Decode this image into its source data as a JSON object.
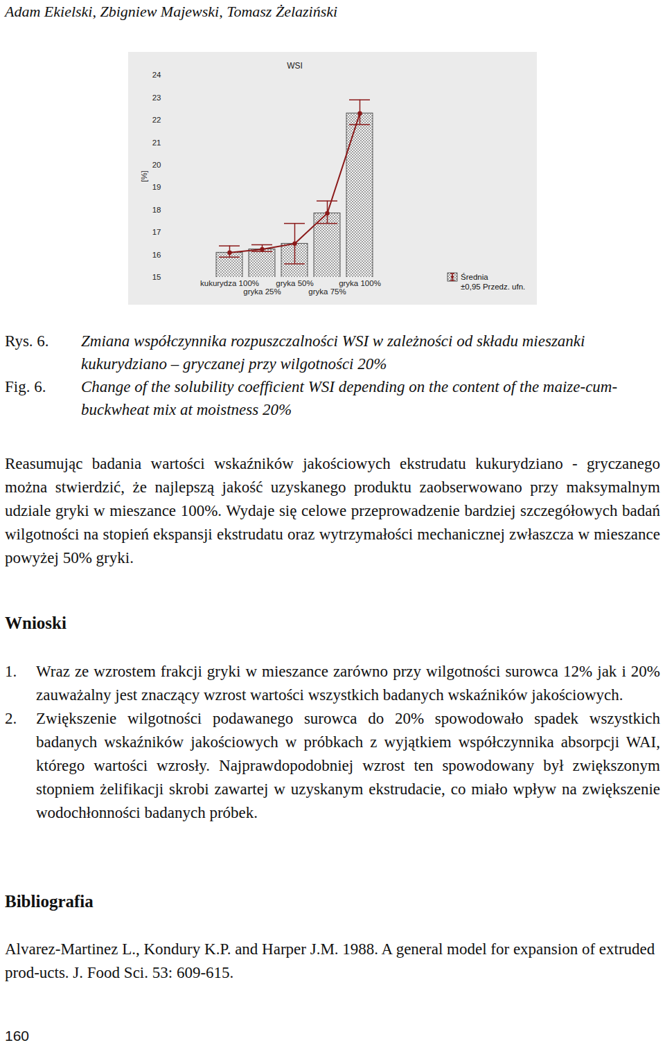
{
  "header": {
    "authors": "Adam Ekielski, Zbigniew Majewski, Tomasz Żelaziński"
  },
  "chart_data": {
    "type": "bar",
    "title": "WSI",
    "y_label": "[%]",
    "categories": [
      "kukurydza 100%",
      "gryka 25%",
      "gryka 50%",
      "gryka 75%",
      "gryka 100%"
    ],
    "color": "#8c8c8c",
    "ylim": [
      15,
      24
    ],
    "yticks": [
      15,
      16,
      17,
      18,
      19,
      20,
      21,
      22,
      23,
      24
    ],
    "grid": false,
    "legend": "right",
    "series": [
      {
        "name": "Średnia",
        "type": "line",
        "marker": "circle",
        "color": "#8b1a1a",
        "values": [
          16.1,
          16.25,
          16.5,
          17.85,
          22.3
        ],
        "error_low": [
          15.9,
          16.15,
          15.6,
          17.4,
          21.8
        ],
        "error_high": [
          16.4,
          16.45,
          17.4,
          18.4,
          22.9
        ],
        "error_name": "±0,95 Przedz. ufn."
      }
    ]
  },
  "caption": {
    "pl_label": "Rys. 6.",
    "pl_text": "Zmiana współczynnika rozpuszczalności WSI w zależności od składu mieszanki kukurydziano – gryczanej przy wilgotności 20%",
    "en_label": "Fig. 6.",
    "en_text": "Change of the solubility coefficient WSI depending on the content of the maize-cum-buckwheat mix at moistness 20%"
  },
  "paragraph": "Reasumując badania wartości wskaźników jakościowych ekstrudatu kukurydziano - gryczanego można stwierdzić, że najlepszą jakość uzyskanego produktu zaobserwowano przy maksymalnym udziale gryki w mieszance 100%. Wydaje się celowe przeprowadzenie bardziej szczegółowych badań wilgotności na stopień ekspansji ekstrudatu oraz wytrzymałości mechanicznej zwłaszcza w mieszance powyżej 50% gryki.",
  "conclusions": {
    "heading": "Wnioski",
    "items": [
      {
        "number": "1.",
        "text": "Wraz ze wzrostem frakcji gryki w mieszance zarówno przy wilgotności surowca 12% jak i 20% zauważalny jest znaczący wzrost wartości wszystkich badanych wskaźników jakościowych."
      },
      {
        "number": "2.",
        "text": "Zwiększenie wilgotności podawanego surowca do 20% spowodowało spadek wszystkich badanych wskaźników jakościowych w próbkach z wyjątkiem współczynnika absorpcji WAI, którego wartości wzrosły. Najprawdopodobniej wzrost ten spowodowany był zwiększonym stopniem żelifikacji skrobi zawartej w uzyskanym ekstrudacie, co miało wpływ na zwiększenie wodochłonności badanych próbek."
      }
    ]
  },
  "bibliography": {
    "heading": "Bibliografia",
    "entries": [
      "Alvarez-Martinez L., Kondury K.P. and Harper J.M. 1988. A general model for expansion of extruded prod-ucts. J. Food Sci. 53: 609-615."
    ]
  },
  "page_number": "160"
}
